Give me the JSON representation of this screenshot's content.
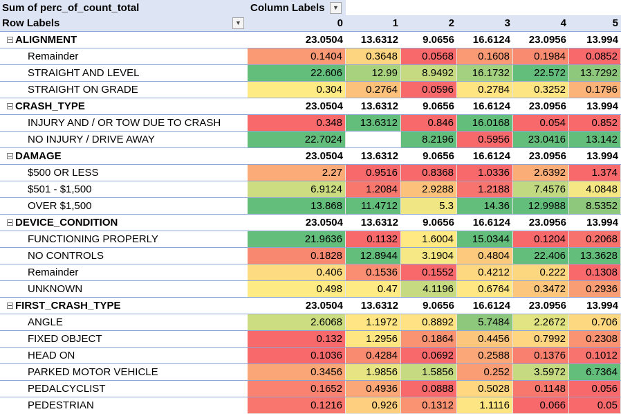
{
  "header": {
    "title": "Sum of perc_of_count_total",
    "column_labels": "Column Labels",
    "row_labels": "Row Labels",
    "dropdown_icon": "dropdown-arrow-icon",
    "columns": [
      "0",
      "1",
      "2",
      "3",
      "4",
      "5"
    ]
  },
  "groups": [
    {
      "label": "ALIGNMENT",
      "totals": [
        "23.0504",
        "13.6312",
        "9.0656",
        "16.6124",
        "23.0956",
        "13.994"
      ],
      "items": [
        {
          "label": "Remainder",
          "values": [
            "0.1404",
            "0.3648",
            "0.0568",
            "0.1608",
            "0.1984",
            "0.0852"
          ],
          "colors": [
            "#f99a75",
            "#fdd47f",
            "#f8696b",
            "#fa9a75",
            "#f98b71",
            "#f8696b"
          ]
        },
        {
          "label": "STRAIGHT AND LEVEL",
          "values": [
            "22.606",
            "12.99",
            "8.9492",
            "16.1732",
            "22.572",
            "13.7292"
          ],
          "colors": [
            "#63be7b",
            "#a9d27f",
            "#c5da81",
            "#a4d17f",
            "#63be7b",
            "#8ec87d"
          ]
        },
        {
          "label": "STRAIGHT ON GRADE",
          "values": [
            "0.304",
            "0.2764",
            "0.0596",
            "0.2784",
            "0.3252",
            "0.1796"
          ],
          "colors": [
            "#ffeb84",
            "#fcc17b",
            "#f8696b",
            "#ffe482",
            "#fee583",
            "#fcb379"
          ]
        }
      ]
    },
    {
      "label": "CRASH_TYPE",
      "totals": [
        "23.0504",
        "13.6312",
        "9.0656",
        "16.6124",
        "23.0956",
        "13.994"
      ],
      "items": [
        {
          "label": "INJURY AND / OR TOW DUE TO CRASH",
          "values": [
            "0.348",
            "13.6312",
            "0.846",
            "16.0168",
            "0.054",
            "0.852"
          ],
          "colors": [
            "#f8696b",
            "#63be7b",
            "#f8696b",
            "#63be7b",
            "#f8696b",
            "#f8696b"
          ]
        },
        {
          "label": "NO INJURY / DRIVE AWAY",
          "values": [
            "22.7024",
            "",
            "8.2196",
            "0.5956",
            "23.0416",
            "13.142"
          ],
          "colors": [
            "#63be7b",
            "#ffffff",
            "#63be7b",
            "#f8696b",
            "#63be7b",
            "#63be7b"
          ]
        }
      ]
    },
    {
      "label": "DAMAGE",
      "totals": [
        "23.0504",
        "13.6312",
        "9.0656",
        "16.6124",
        "23.0956",
        "13.994"
      ],
      "items": [
        {
          "label": "$500 OR LESS",
          "values": [
            "2.27",
            "0.9516",
            "0.8368",
            "1.0336",
            "2.6392",
            "1.374"
          ],
          "colors": [
            "#fbab78",
            "#f8696b",
            "#f8696b",
            "#f8696b",
            "#fbad78",
            "#f8696b"
          ]
        },
        {
          "label": "$501 - $1,500",
          "values": [
            "6.9124",
            "1.2084",
            "2.9288",
            "1.2188",
            "7.4576",
            "4.0848"
          ],
          "colors": [
            "#cbdc81",
            "#f8786e",
            "#fcc27c",
            "#f8746e",
            "#c1d981",
            "#f5e884"
          ]
        },
        {
          "label": "OVER $1,500",
          "values": [
            "13.868",
            "11.4712",
            "5.3",
            "14.36",
            "12.9988",
            "8.5352"
          ],
          "colors": [
            "#63be7b",
            "#63be7b",
            "#f0e683",
            "#63be7b",
            "#63be7b",
            "#8ec87d"
          ]
        }
      ]
    },
    {
      "label": "DEVICE_CONDITION",
      "totals": [
        "23.0504",
        "13.6312",
        "9.0656",
        "16.6124",
        "23.0956",
        "13.994"
      ],
      "items": [
        {
          "label": "FUNCTIONING PROPERLY",
          "values": [
            "21.9636",
            "0.1132",
            "1.6004",
            "15.0344",
            "0.1204",
            "0.2068"
          ],
          "colors": [
            "#63be7b",
            "#f8696b",
            "#fee983",
            "#63be7b",
            "#f8696b",
            "#f8726d"
          ]
        },
        {
          "label": "NO CONTROLS",
          "values": [
            "0.1828",
            "12.8944",
            "3.1904",
            "0.4804",
            "22.406",
            "13.3628"
          ],
          "colors": [
            "#f98870",
            "#63be7b",
            "#f6e884",
            "#fdca7d",
            "#63be7b",
            "#63be7b"
          ]
        },
        {
          "label": "Remainder",
          "values": [
            "0.406",
            "0.1536",
            "0.1552",
            "0.4212",
            "0.222",
            "0.1308"
          ],
          "colors": [
            "#fddc81",
            "#f98e72",
            "#f8696b",
            "#fed880",
            "#fdd680",
            "#f8696b"
          ]
        },
        {
          "label": "UNKNOWN",
          "values": [
            "0.498",
            "0.47",
            "4.1196",
            "0.6764",
            "0.3472",
            "0.2936"
          ],
          "colors": [
            "#ffeb84",
            "#ffeb84",
            "#c5da81",
            "#ffe883",
            "#fcc67c",
            "#f99d75"
          ]
        }
      ]
    },
    {
      "label": "FIRST_CRASH_TYPE",
      "totals": [
        "23.0504",
        "13.6312",
        "9.0656",
        "16.6124",
        "23.0956",
        "13.994"
      ],
      "items": [
        {
          "label": "ANGLE",
          "values": [
            "2.6068",
            "1.1972",
            "0.8892",
            "5.7484",
            "2.2672",
            "0.706"
          ],
          "colors": [
            "#cbdc81",
            "#ffe583",
            "#fee283",
            "#8ec87d",
            "#e2e382",
            "#fed880"
          ]
        },
        {
          "label": "FIXED OBJECT",
          "values": [
            "0.132",
            "1.2956",
            "0.1864",
            "0.4456",
            "0.7992",
            "0.2308"
          ],
          "colors": [
            "#f8696b",
            "#fee683",
            "#fa9372",
            "#fcc67c",
            "#fed580",
            "#fa9372"
          ]
        },
        {
          "label": "HEAD ON",
          "values": [
            "0.1036",
            "0.4284",
            "0.0692",
            "0.2588",
            "0.1376",
            "0.1012"
          ],
          "colors": [
            "#f8696b",
            "#f98b71",
            "#f8696b",
            "#fba777",
            "#f9806f",
            "#f8736d"
          ]
        },
        {
          "label": "PARKED MOTOR VEHICLE",
          "values": [
            "0.3456",
            "1.9856",
            "1.5856",
            "0.252",
            "3.5972",
            "6.7364"
          ],
          "colors": [
            "#fba677",
            "#e6e483",
            "#c5da81",
            "#fa9d75",
            "#c5da81",
            "#63be7b"
          ]
        },
        {
          "label": "PEDALCYCLIST",
          "values": [
            "0.1652",
            "0.4936",
            "0.0888",
            "0.5028",
            "0.1148",
            "0.056"
          ],
          "colors": [
            "#f98270",
            "#fba777",
            "#f8696b",
            "#fed780",
            "#f9786e",
            "#f8696b"
          ]
        },
        {
          "label": "PEDESTRIAN",
          "values": [
            "0.1216",
            "0.926",
            "0.1312",
            "1.1116",
            "0.066",
            "0.05"
          ],
          "colors": [
            "#f8766d",
            "#fdcf7e",
            "#fa9372",
            "#fee583",
            "#f8696b",
            "#f8696b"
          ]
        }
      ]
    }
  ]
}
